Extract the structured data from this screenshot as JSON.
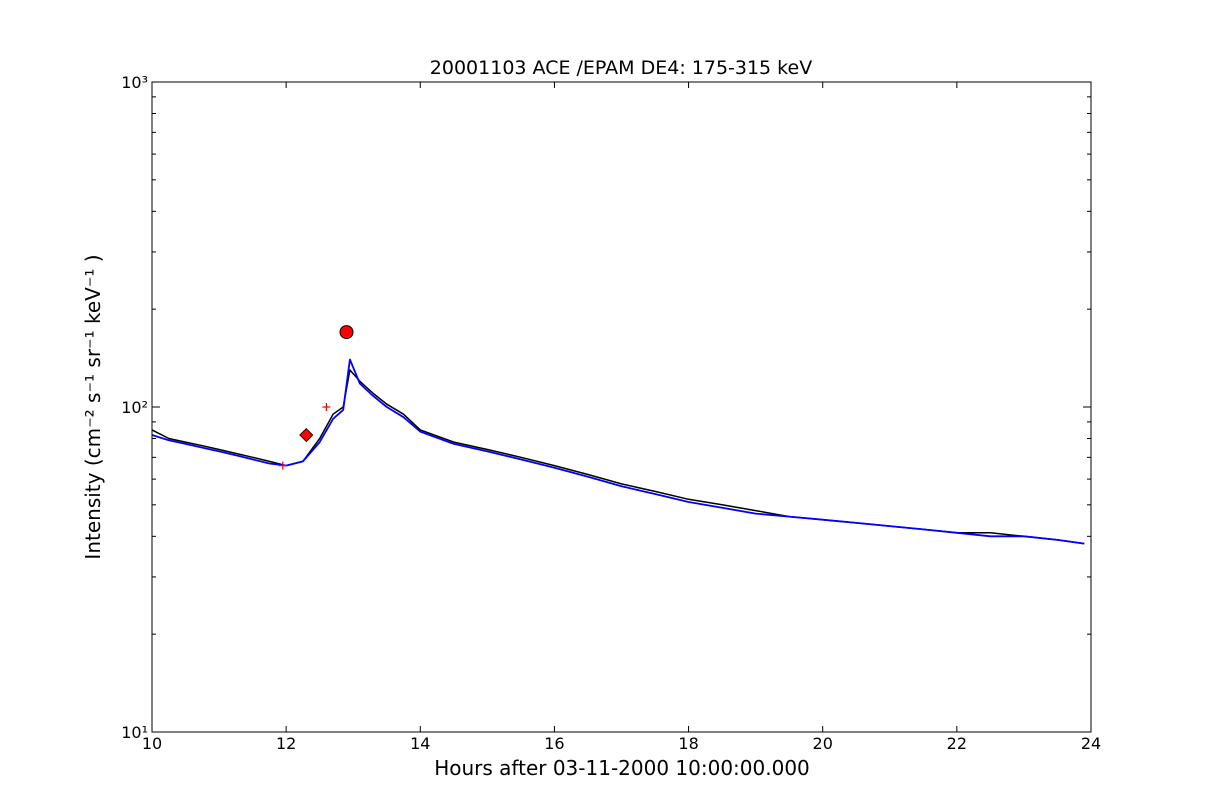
{
  "chart_data": {
    "type": "line",
    "title": "20001103 ACE /EPAM DE4: 175-315 keV",
    "xlabel": "Hours after 03-11-2000 10:00:00.000",
    "ylabel": "Intensity (cm⁻² s⁻¹ sr⁻¹ keV⁻¹ )",
    "xlim": [
      10,
      24
    ],
    "ylim": [
      10,
      1000
    ],
    "yscale": "log",
    "grid": false,
    "x_ticks": [
      10,
      12,
      14,
      16,
      18,
      20,
      22,
      24
    ],
    "x_tick_labels": [
      "10",
      "12",
      "14",
      "16",
      "18",
      "20",
      "22",
      "24"
    ],
    "y_ticks": [
      10,
      100,
      1000
    ],
    "y_tick_labels": [
      "10¹",
      "10²",
      "10³"
    ],
    "colors": {
      "raw": "#000000",
      "smoothed": "#0000ff",
      "marker": "#ff0000"
    },
    "series": [
      {
        "style": "line",
        "color": "#000000",
        "x": [
          10.0,
          10.25,
          10.5,
          10.75,
          11.0,
          11.25,
          11.5,
          11.75,
          12.0,
          12.25,
          12.5,
          12.7,
          12.85,
          12.95,
          13.1,
          13.3,
          13.5,
          13.75,
          14.0,
          14.5,
          15.0,
          15.5,
          16.0,
          16.5,
          17.0,
          17.5,
          18.0,
          18.5,
          19.0,
          19.5,
          20.0,
          20.5,
          21.0,
          21.5,
          22.0,
          22.5,
          23.0,
          23.5,
          23.9
        ],
        "y": [
          85,
          80,
          78,
          76,
          74,
          72,
          70,
          68,
          66,
          68,
          80,
          95,
          100,
          130,
          120,
          110,
          102,
          95,
          85,
          78,
          74,
          70,
          66,
          62,
          58,
          55,
          52,
          50,
          48,
          46,
          45,
          44,
          43,
          42,
          41,
          41,
          40,
          39,
          38
        ]
      },
      {
        "style": "line",
        "color": "#0000ff",
        "x": [
          10.0,
          10.25,
          10.5,
          10.75,
          11.0,
          11.25,
          11.5,
          11.75,
          12.0,
          12.25,
          12.5,
          12.7,
          12.85,
          12.95,
          13.1,
          13.3,
          13.5,
          13.75,
          14.0,
          14.5,
          15.0,
          15.5,
          16.0,
          16.5,
          17.0,
          17.5,
          18.0,
          18.5,
          19.0,
          19.5,
          20.0,
          20.5,
          21.0,
          21.5,
          22.0,
          22.5,
          23.0,
          23.5,
          23.9
        ],
        "y": [
          82,
          79,
          77,
          75,
          73,
          71,
          69,
          67,
          66,
          68,
          78,
          92,
          98,
          140,
          118,
          108,
          100,
          93,
          84,
          77,
          73,
          69,
          65,
          61,
          57,
          54,
          51,
          49,
          47,
          46,
          45,
          44,
          43,
          42,
          41,
          40,
          40,
          39,
          38
        ]
      }
    ],
    "markers": [
      {
        "shape": "diamond",
        "x": 12.3,
        "y": 82,
        "color": "#ff0000"
      },
      {
        "shape": "circle",
        "x": 12.9,
        "y": 170,
        "color": "#ff0000"
      },
      {
        "shape": "plus",
        "x": 11.95,
        "y": 66,
        "color": "#ff0000"
      },
      {
        "shape": "plus",
        "x": 12.6,
        "y": 100,
        "color": "#ff0000"
      }
    ]
  }
}
